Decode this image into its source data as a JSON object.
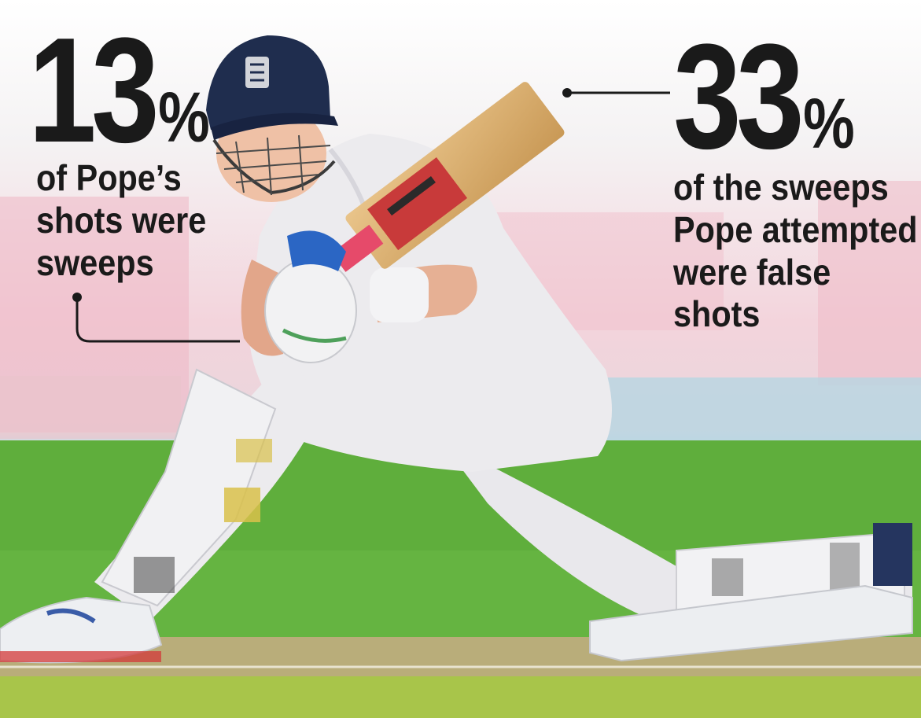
{
  "stat_left": {
    "number": "13",
    "percent": "%",
    "caption_lines": [
      "of Pope’s",
      "shots were",
      "sweeps"
    ]
  },
  "stat_right": {
    "number": "33",
    "percent": "%",
    "caption_lines": [
      "of the sweeps",
      "Pope attempted",
      "were false",
      "shots"
    ]
  },
  "colors": {
    "text": "#1a1a1a",
    "grass": "#5fae3c",
    "pitch": "#b9ad7a",
    "kit": "#ecebee",
    "helmet": "#1f2d4e"
  },
  "icons": [
    "england-crest-icon"
  ]
}
